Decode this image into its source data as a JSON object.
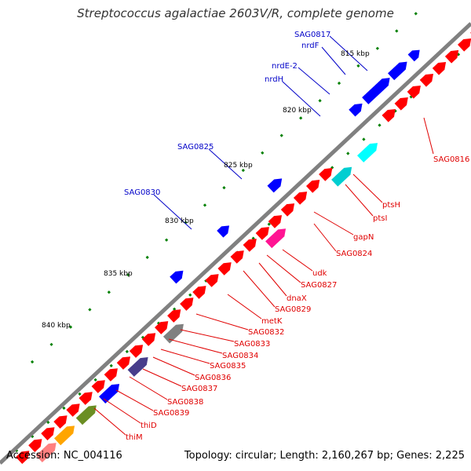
{
  "title": "Streptococcus agalactiae 2603V/R, complete genome",
  "footer": {
    "accession": "Accession: NC_004116",
    "summary": "Topology: circular; Length: 2,160,267 bp; Genes: 2,225"
  },
  "colors": {
    "backbone": "#808080",
    "forward_gene": "#ff0000",
    "reverse_gene": "#0000ff",
    "forward_label": "#e00000",
    "reverse_label": "#0000c8",
    "tick": "#008000"
  },
  "scale_labels": [
    {
      "text": "815 kbp"
    },
    {
      "text": "820 kbp"
    },
    {
      "text": "825 kbp"
    },
    {
      "text": "830 kbp"
    },
    {
      "text": "835 kbp"
    },
    {
      "text": "840 kbp"
    }
  ],
  "gene_labels_reverse": [
    {
      "text": "SAG0817"
    },
    {
      "text": "nrdF"
    },
    {
      "text": "nrdE-2"
    },
    {
      "text": "nrdH"
    },
    {
      "text": "SAG0825"
    },
    {
      "text": "SAG0830"
    }
  ],
  "gene_labels_forward": [
    {
      "text": "SAG0816"
    },
    {
      "text": "ptsH"
    },
    {
      "text": "ptsI"
    },
    {
      "text": "gapN"
    },
    {
      "text": "SAG0824"
    },
    {
      "text": "udk"
    },
    {
      "text": "SAG0827"
    },
    {
      "text": "dnaX"
    },
    {
      "text": "SAG0829"
    },
    {
      "text": "metK"
    },
    {
      "text": "SAG0832"
    },
    {
      "text": "SAG0833"
    },
    {
      "text": "SAG0834"
    },
    {
      "text": "SAG0835"
    },
    {
      "text": "SAG0836"
    },
    {
      "text": "SAG0837"
    },
    {
      "text": "SAG0838"
    },
    {
      "text": "SAG0839"
    },
    {
      "text": "thiD"
    },
    {
      "text": "thiM"
    }
  ]
}
